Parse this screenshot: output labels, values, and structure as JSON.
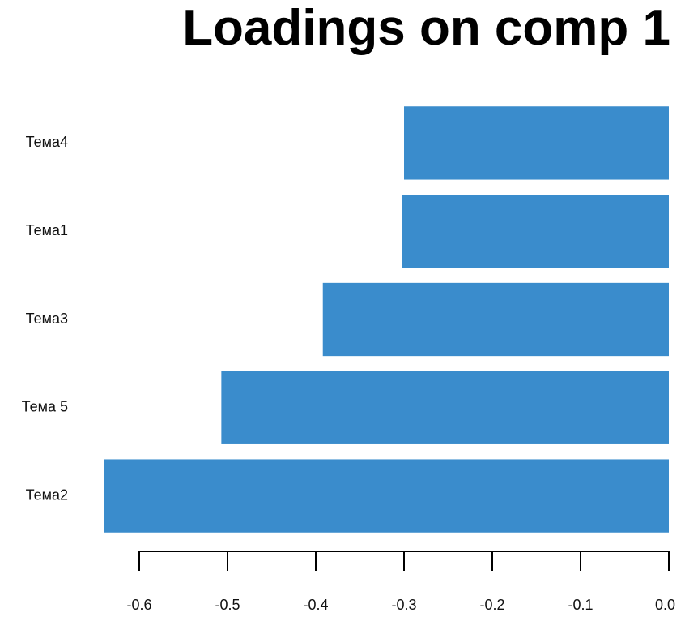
{
  "chart_data": {
    "type": "bar",
    "orientation": "horizontal",
    "title": "Loadings on comp 1",
    "categories": [
      "Тема2",
      "Тема 5",
      "Тема3",
      "Тема1",
      "Тема4"
    ],
    "values": [
      -0.64,
      -0.507,
      -0.392,
      -0.302,
      -0.3
    ],
    "xlim": [
      -0.6,
      0.0
    ],
    "xticks": [
      -0.6,
      -0.5,
      -0.4,
      -0.3,
      -0.2,
      -0.1,
      0.0
    ],
    "xtick_labels": [
      "-0.6",
      "-0.5",
      "-0.4",
      "-0.3",
      "-0.2",
      "-0.1",
      "0.0"
    ],
    "xlabel": "",
    "ylabel": "",
    "bar_color": "#3a8ccc",
    "grid": false,
    "legend": "none"
  }
}
